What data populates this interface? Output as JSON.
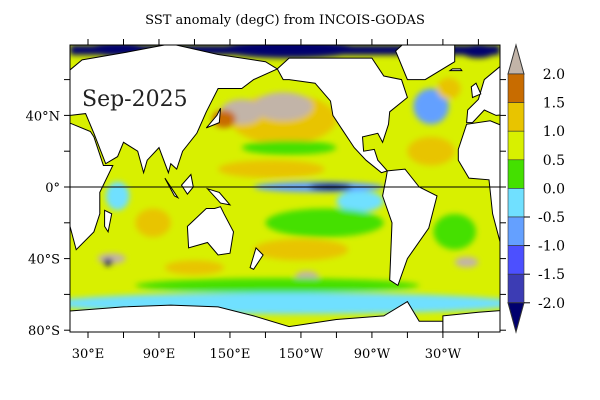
{
  "title": "SST anomaly (degC) from INCOIS-GODAS",
  "period_label": "Sep-2025",
  "chart_data": {
    "type": "heatmap",
    "title": "SST anomaly (degC) from INCOIS-GODAS",
    "units": "degC",
    "lon_range": [
      15,
      378
    ],
    "lat_range": [
      -80,
      79
    ],
    "y_ticks": [
      {
        "lat": 40,
        "label": "40°N"
      },
      {
        "lat": 0,
        "label": "0°"
      },
      {
        "lat": -40,
        "label": "40°S"
      },
      {
        "lat": -80,
        "label": "80°S"
      }
    ],
    "x_ticks": [
      {
        "lon": 30,
        "label": "30°E"
      },
      {
        "lon": 90,
        "label": "90°E"
      },
      {
        "lon": 150,
        "label": "150°E"
      },
      {
        "lon": 210,
        "label": "150°W"
      },
      {
        "lon": 270,
        "label": "90°W"
      },
      {
        "lon": 330,
        "label": "30°W"
      }
    ],
    "colorbar": {
      "levels": [
        "2.0",
        "1.5",
        "1.0",
        "0.5",
        "0.0",
        "-0.5",
        "-1.0",
        "-1.5",
        "-2.0"
      ],
      "colors": [
        "#c2b4a8",
        "#c86c00",
        "#e8c400",
        "#d8f000",
        "#44e000",
        "#70e0ff",
        "#64a0ff",
        "#4c50ff",
        "#3c3cb4",
        "#00006e"
      ]
    },
    "base_value": 0.75,
    "anomaly_regions": [
      {
        "name": "north-pacific-warm",
        "lon": 195,
        "lat": 38,
        "rlon": 45,
        "rlat": 14,
        "value": 1.25
      },
      {
        "name": "ne-pacific-marine-heatwave",
        "lon": 195,
        "lat": 45,
        "rlon": 25,
        "rlat": 8,
        "value": 2.2
      },
      {
        "name": "nw-pacific-heatwave",
        "lon": 160,
        "lat": 42,
        "rlon": 18,
        "rlat": 7,
        "value": 2.2
      },
      {
        "name": "kuroshio-warm",
        "lon": 145,
        "lat": 38,
        "rlon": 10,
        "rlat": 5,
        "value": 1.75
      },
      {
        "name": "subtropical-pacific-green",
        "lon": 200,
        "lat": 22,
        "rlon": 40,
        "rlat": 4,
        "value": 0.25
      },
      {
        "name": "tropical-pacific-orange",
        "lon": 185,
        "lat": 10,
        "rlon": 45,
        "rlat": 5,
        "value": 1.25
      },
      {
        "name": "equatorial-cold-tongue",
        "lon": 225,
        "lat": 0,
        "rlon": 55,
        "rlat": 3,
        "value": -0.75
      },
      {
        "name": "nino-core-cold",
        "lon": 235,
        "lat": 0,
        "rlon": 18,
        "rlat": 2,
        "value": -2.2
      },
      {
        "name": "east-pacific-cool",
        "lon": 260,
        "lat": -8,
        "rlon": 20,
        "rlat": 6,
        "value": -0.25
      },
      {
        "name": "south-pacific-green",
        "lon": 230,
        "lat": -20,
        "rlon": 50,
        "rlat": 8,
        "value": 0.25
      },
      {
        "name": "south-pacific-orange",
        "lon": 210,
        "lat": -35,
        "rlon": 40,
        "rlat": 6,
        "value": 1.25
      },
      {
        "name": "north-atlantic-cool",
        "lon": 320,
        "lat": 45,
        "rlon": 15,
        "rlat": 10,
        "value": -0.75
      },
      {
        "name": "north-atlantic-warm",
        "lon": 335,
        "lat": 55,
        "rlon": 10,
        "rlat": 6,
        "value": 1.25
      },
      {
        "name": "tropical-atlantic-orange",
        "lon": 320,
        "lat": 20,
        "rlon": 20,
        "rlat": 8,
        "value": 1.25
      },
      {
        "name": "south-atlantic-green",
        "lon": 340,
        "lat": -25,
        "rlon": 18,
        "rlat": 10,
        "value": 0.25
      },
      {
        "name": "indian-ocean-west-cool",
        "lon": 55,
        "lat": -5,
        "rlon": 10,
        "rlat": 8,
        "value": -0.25
      },
      {
        "name": "indian-ocean-warm",
        "lon": 85,
        "lat": -20,
        "rlon": 15,
        "rlat": 8,
        "value": 1.25
      },
      {
        "name": "southern-indian-hot",
        "lon": 50,
        "lat": -40,
        "rlon": 12,
        "rlat": 3,
        "value": 2.2
      },
      {
        "name": "southern-indian-cold",
        "lon": 47,
        "lat": -42,
        "rlon": 4,
        "rlat": 2,
        "value": -2.2
      },
      {
        "name": "southern-ocean-orange",
        "lon": 120,
        "lat": -45,
        "rlon": 25,
        "rlat": 4,
        "value": 1.25
      },
      {
        "name": "southern-ocean-hot",
        "lon": 215,
        "lat": -50,
        "rlon": 10,
        "rlat": 3,
        "value": 2.2
      },
      {
        "name": "south-atlantic-hot",
        "lon": 350,
        "lat": -42,
        "rlon": 10,
        "rlat": 3,
        "value": 2.2
      },
      {
        "name": "southern-ocean-green",
        "lon": 190,
        "lat": -55,
        "rlon": 120,
        "rlat": 4,
        "value": 0.25
      },
      {
        "name": "antarctic-cyan-band",
        "lon": 196,
        "lat": -65,
        "rlon": 200,
        "rlat": 6,
        "value": -0.25
      },
      {
        "name": "arctic-cold",
        "lon": 200,
        "lat": 77,
        "rlon": 60,
        "rlat": 5,
        "value": -2.2
      },
      {
        "name": "barents-cold",
        "lon": 55,
        "lat": 77,
        "rlon": 25,
        "rlat": 4,
        "value": -2.2
      },
      {
        "name": "greenland-sea-cold",
        "lon": 360,
        "lat": 76,
        "rlon": 15,
        "rlat": 4,
        "value": -2.2
      }
    ]
  }
}
